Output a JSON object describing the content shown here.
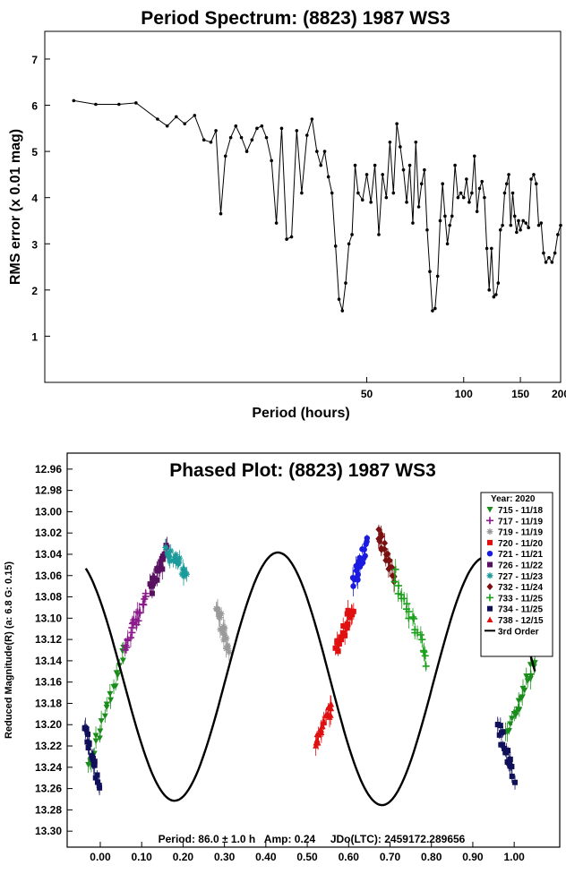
{
  "chart_data": [
    {
      "type": "line",
      "title": "Period Spectrum: (8823) 1987 WS3",
      "xlabel": "Period (hours)",
      "ylabel": "RMS error (x 0.01 mag)",
      "xscale": "log",
      "xlim": [
        5,
        200
      ],
      "ylim": [
        0,
        7.6
      ],
      "x_ticks": [
        50,
        100,
        150,
        200
      ],
      "x_tick_labels": [
        "50",
        "100",
        "150",
        "200"
      ],
      "y_ticks": [
        1,
        2,
        3,
        4,
        5,
        6,
        7
      ],
      "y_tick_labels": [
        "1",
        "2",
        "3",
        "4",
        "5",
        "6",
        "7"
      ],
      "grid": false,
      "series": [
        {
          "x": [
            6.15,
            7.2,
            8.5,
            9.6,
            11.2,
            12.0,
            12.8,
            13.6,
            14.6,
            15.6,
            16.4,
            17.0,
            17.6,
            18.2,
            18.9,
            19.6,
            20.4,
            21.2,
            22.0,
            22.8,
            23.6,
            24.4,
            25.3,
            26.2,
            27.2,
            28.2,
            29.2,
            30.3,
            31.4,
            32.6,
            33.8,
            35.0,
            36.0,
            37.0,
            38.0,
            39.0,
            40.0,
            41.0,
            42.0,
            43.0,
            44.0,
            45.0,
            46.0,
            47.0,
            48.5,
            50.0,
            51.5,
            53.0,
            54.5,
            56.0,
            57.5,
            59.0,
            60.5,
            62.0,
            63.5,
            65.0,
            66.5,
            68.0,
            69.5,
            71.0,
            72.5,
            74.0,
            75.5,
            77.0,
            78.5,
            80.0,
            81.5,
            83.0,
            84.5,
            86.0,
            87.5,
            89.0,
            90.5,
            92.0,
            94.0,
            96.0,
            98.0,
            100.0,
            102.0,
            104.0,
            106.0,
            108.0,
            110.0,
            112.0,
            114.0,
            116.0,
            118.0,
            120.0,
            122.0,
            124.0,
            126.0,
            128.0,
            130.0,
            132.0,
            134.0,
            136.0,
            138.0,
            140.0,
            142.0,
            144.0,
            146.0,
            148.0,
            150.0,
            153.0,
            156.0,
            159.0,
            162.0,
            165.0,
            168.0,
            171.0,
            174.0,
            177.0,
            180.0,
            184.0,
            188.0,
            192.0,
            196.0,
            200.0
          ],
          "y": [
            6.1,
            6.02,
            6.02,
            6.05,
            5.7,
            5.55,
            5.75,
            5.6,
            5.78,
            5.25,
            5.2,
            5.45,
            3.65,
            4.9,
            5.3,
            5.55,
            5.3,
            5.0,
            5.25,
            5.5,
            5.55,
            5.3,
            4.8,
            3.45,
            5.5,
            3.1,
            3.15,
            5.45,
            4.1,
            5.35,
            5.7,
            5.0,
            4.7,
            5.0,
            4.45,
            4.1,
            2.95,
            1.8,
            1.55,
            2.15,
            3.0,
            3.2,
            4.7,
            4.1,
            3.95,
            4.5,
            3.9,
            4.7,
            3.2,
            4.5,
            4.0,
            5.2,
            4.1,
            5.6,
            5.1,
            4.6,
            3.9,
            4.7,
            3.45,
            5.2,
            3.8,
            4.3,
            4.6,
            3.3,
            2.4,
            1.55,
            1.6,
            2.3,
            3.5,
            4.3,
            3.6,
            3.0,
            3.4,
            3.6,
            4.7,
            4.0,
            4.1,
            4.0,
            4.4,
            3.9,
            4.1,
            4.9,
            3.7,
            4.2,
            4.35,
            4.0,
            2.9,
            2.0,
            2.9,
            1.85,
            1.9,
            2.15,
            3.3,
            3.4,
            4.1,
            4.3,
            4.5,
            3.4,
            4.1,
            3.6,
            3.25,
            3.5,
            3.3,
            3.5,
            3.45,
            3.35,
            4.4,
            4.5,
            4.3,
            3.4,
            3.45,
            2.8,
            2.6,
            2.7,
            2.6,
            2.8,
            3.2,
            3.4
          ]
        }
      ]
    },
    {
      "type": "scatter",
      "title": "Phased Plot: (8823) 1987 WS3",
      "xlabel": "",
      "ylabel": "Reduced Magnitude(R)  (a: 6.8  G: 0.15)",
      "xlim": [
        -0.08,
        1.11
      ],
      "ylim": [
        13.315,
        12.945
      ],
      "y_inverted": true,
      "x_ticks": [
        0.0,
        0.1,
        0.2,
        0.3,
        0.4,
        0.5,
        0.6,
        0.7,
        0.8,
        0.9,
        1.0
      ],
      "x_tick_labels": [
        "0.00",
        "0.10",
        "0.20",
        "0.30",
        "0.40",
        "0.50",
        "0.60",
        "0.70",
        "0.80",
        "0.90",
        "1.00"
      ],
      "y_ticks": [
        12.96,
        12.98,
        13.0,
        13.02,
        13.04,
        13.06,
        13.08,
        13.1,
        13.12,
        13.14,
        13.16,
        13.18,
        13.2,
        13.22,
        13.24,
        13.26,
        13.28,
        13.3
      ],
      "y_tick_labels": [
        "12.96",
        "12.98",
        "13.00",
        "13.02",
        "13.04",
        "13.06",
        "13.08",
        "13.10",
        "13.12",
        "13.14",
        "13.16",
        "13.18",
        "13.20",
        "13.22",
        "13.24",
        "13.26",
        "13.28",
        "13.30"
      ],
      "grid": false,
      "legend_position": "top-right",
      "legend_title": "Year: 2020",
      "info_text": "Period: 86.0 ± 1.0 h   Amp: 0.24     JDo(LTC): 2459172.289656",
      "series": [
        {
          "name": "715 - 11/18",
          "color": "#1a8c1a",
          "marker": "triangle-down",
          "x_range": [
            -0.03,
            0.06
          ],
          "y_range": [
            13.24,
            13.13
          ],
          "x_wrap": [
            0.98,
            1.05
          ],
          "y_wrap": [
            13.21,
            13.14
          ]
        },
        {
          "name": "717 - 11/19",
          "color": "#8b1a8b",
          "marker": "plus",
          "x_range": [
            0.06,
            0.11
          ],
          "y_range": [
            13.13,
            13.08
          ]
        },
        {
          "name": "719 - 11/19",
          "color": "#9a9a9a",
          "marker": "asterisk",
          "x_range": [
            0.28,
            0.31
          ],
          "y_range": [
            13.09,
            13.13
          ]
        },
        {
          "name": "720 - 11/20",
          "color": "#e01010",
          "marker": "square",
          "x_range": [
            0.57,
            0.61
          ],
          "y_range": [
            13.13,
            13.09
          ]
        },
        {
          "name": "721 - 11/21",
          "color": "#1a1ae0",
          "marker": "circle",
          "x_range": [
            0.61,
            0.645
          ],
          "y_range": [
            13.07,
            13.03
          ]
        },
        {
          "name": "726 - 11/22",
          "color": "#5a1060",
          "marker": "square",
          "x_range": [
            0.12,
            0.16
          ],
          "y_range": [
            13.075,
            13.035
          ]
        },
        {
          "name": "727 - 11/23",
          "color": "#1a9a9a",
          "marker": "asterisk",
          "x_range": [
            0.16,
            0.21
          ],
          "y_range": [
            13.035,
            13.06
          ]
        },
        {
          "name": "732 - 11/24",
          "color": "#7a1010",
          "marker": "diamond",
          "x_range": [
            0.67,
            0.71
          ],
          "y_range": [
            13.02,
            13.06
          ]
        },
        {
          "name": "733 - 11/25",
          "color": "#1aa01a",
          "marker": "plus",
          "x_range": [
            0.71,
            0.79
          ],
          "y_range": [
            13.06,
            13.14
          ]
        },
        {
          "name": "734 - 11/25",
          "color": "#10105a",
          "marker": "square",
          "x_range": [
            -0.04,
            0.0
          ],
          "y_range": [
            13.2,
            13.26
          ],
          "x_wrap": [
            0.96,
            1.0
          ],
          "y_wrap": [
            13.2,
            13.25
          ]
        },
        {
          "name": "738 - 12/15",
          "color": "#e01010",
          "marker": "triangle-up",
          "x_range": [
            0.52,
            0.56
          ],
          "y_range": [
            13.22,
            13.18
          ]
        }
      ],
      "fit": {
        "name": "3rd Order",
        "color": "#000000",
        "mean": 13.157,
        "terms": [
          [
            0.1165,
            0.002,
            1
          ],
          [
            0.002,
            0.004,
            2
          ],
          [
            0.0,
            0.0,
            3
          ]
        ]
      }
    }
  ]
}
